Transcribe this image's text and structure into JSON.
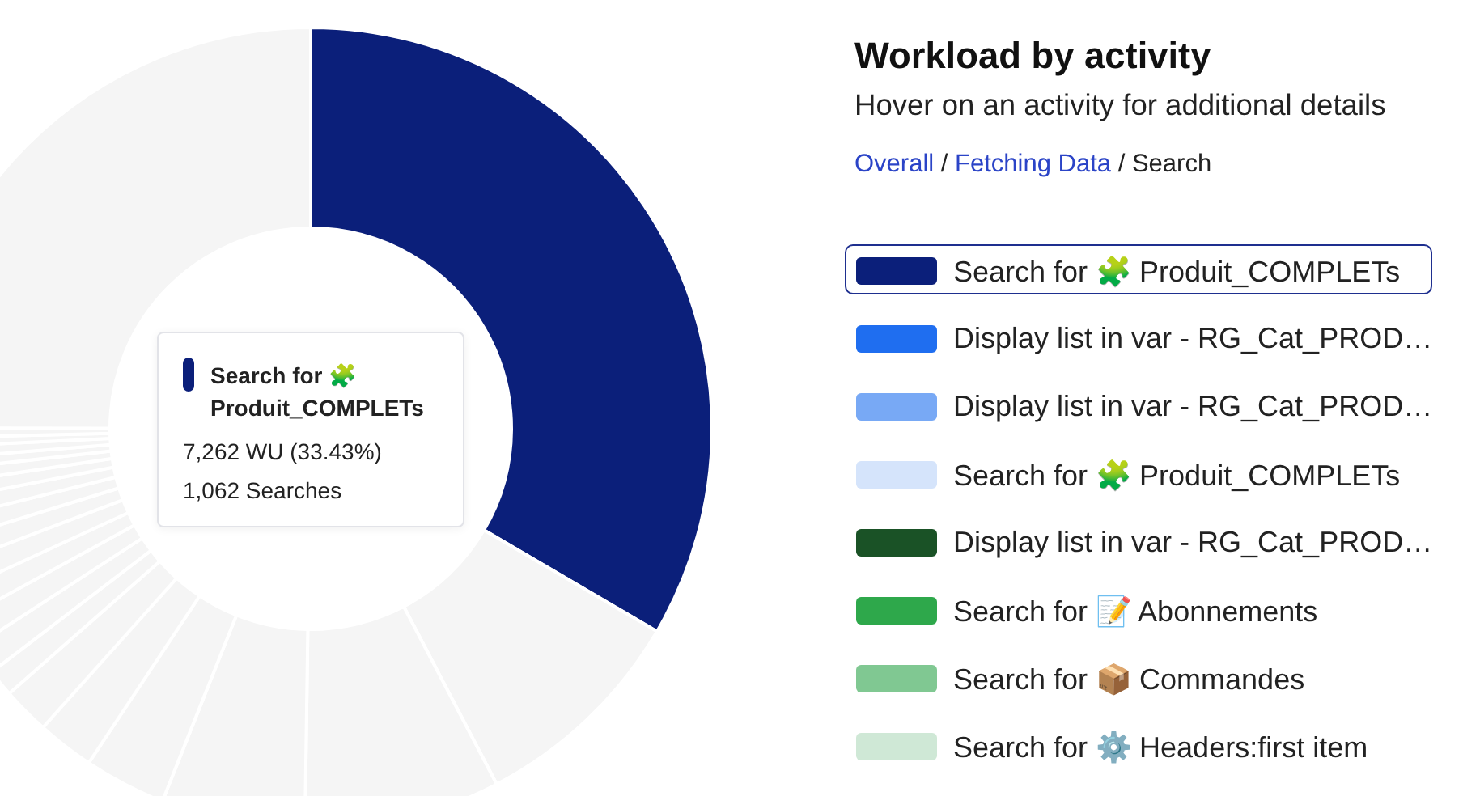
{
  "chart_data": [
    {
      "type": "donut",
      "categories": [
        "Search for 🧩 Produit_COMPLETs",
        null,
        null,
        null,
        null,
        null,
        null,
        null,
        null,
        null,
        null,
        null,
        null,
        null,
        null,
        null,
        null,
        null,
        null,
        null,
        null,
        null
      ],
      "values": [
        33.43,
        8.9,
        7.9,
        5.8,
        3.3,
        2.3,
        1.9,
        1.1,
        1.2,
        1.2,
        1.1,
        1.1,
        1.0,
        0.9,
        0.8,
        0.7,
        0.6,
        0.5,
        0.5,
        0.4,
        0.4,
        24.97
      ],
      "colors": [
        "#0b1f7a",
        "#f5f5f5",
        "#f5f5f5",
        "#f5f5f5",
        "#f5f5f5",
        "#f5f5f5",
        "#f5f5f5",
        "#f5f5f5",
        "#f5f5f5",
        "#f5f5f5",
        "#f5f5f5",
        "#f5f5f5",
        "#f5f5f5",
        "#f5f5f5",
        "#f5f5f5",
        "#f5f5f5",
        "#f5f5f5",
        "#f5f5f5",
        "#f5f5f5",
        "#f5f5f5",
        "#f5f5f5",
        "#f5f5f5"
      ],
      "annotations": [
        "7,262 WU (33.43%)",
        "1,062 Searches"
      ]
    },
    {
      "type": "other",
      "title": "Workload by activity",
      "subtitle": "Hover on an activity for additional details",
      "annotations": [
        "Overall / Fetching Data / Search"
      ],
      "categories": [
        "Search for 🧩 Produit_COMPLETs",
        "Display list in var - RG_Cat_PROD…",
        "Display list in var - RG_Cat_PROD…",
        "Search for 🧩 Produit_COMPLETs",
        "Display list in var - RG_Cat_PROD…",
        "Search for 📝 Abonnements",
        "Search for 📦 Commandes",
        "Search for ⚙️ Headers:first item"
      ],
      "colors": [
        "#0b1f7a",
        "#1f6ef0",
        "#78a9f5",
        "#d5e4fb",
        "#1a5226",
        "#2ea84b",
        "#80c892",
        "#cfe8d6"
      ]
    }
  ]
}
